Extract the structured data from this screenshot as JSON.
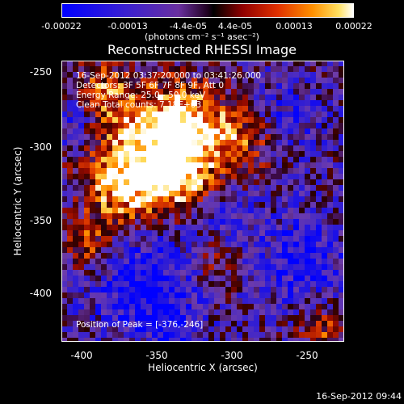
{
  "chart_data": {
    "type": "heatmap",
    "title": "Reconstructed RHESSI Image",
    "xlabel": "Heliocentric X (arcsec)",
    "ylabel": "Heliocentric Y (arcsec)",
    "xlim": [
      -412,
      -223
    ],
    "ylim": [
      -433,
      -241
    ],
    "x_ticks": [
      -400,
      -350,
      -300,
      -250
    ],
    "y_ticks": [
      -250,
      -300,
      -350,
      -400
    ],
    "colorbar": {
      "ticks": [
        "-0.00022",
        "-0.00013",
        "-4.4e-05",
        "4.4e-05",
        "0.00013",
        "0.00022"
      ],
      "label": "(photons cm⁻² s⁻¹ asec⁻²)",
      "range": [
        -0.00022,
        0.00022
      ]
    },
    "annotations": [
      "16-Sep-2012 03:37:20.000 to 03:41:26.000",
      "Detectors: 3F 5F 6F 7F 8F 9F, Att 0",
      "Energy Range: 25.0 - 50.0 keV",
      "Clean     Total counts: 7.18E+03"
    ],
    "peak_label": "Position of Peak = [-376,-246]",
    "peak_position": [
      -376,
      -246
    ]
  },
  "timestamp": "16-Sep-2012 09:44"
}
